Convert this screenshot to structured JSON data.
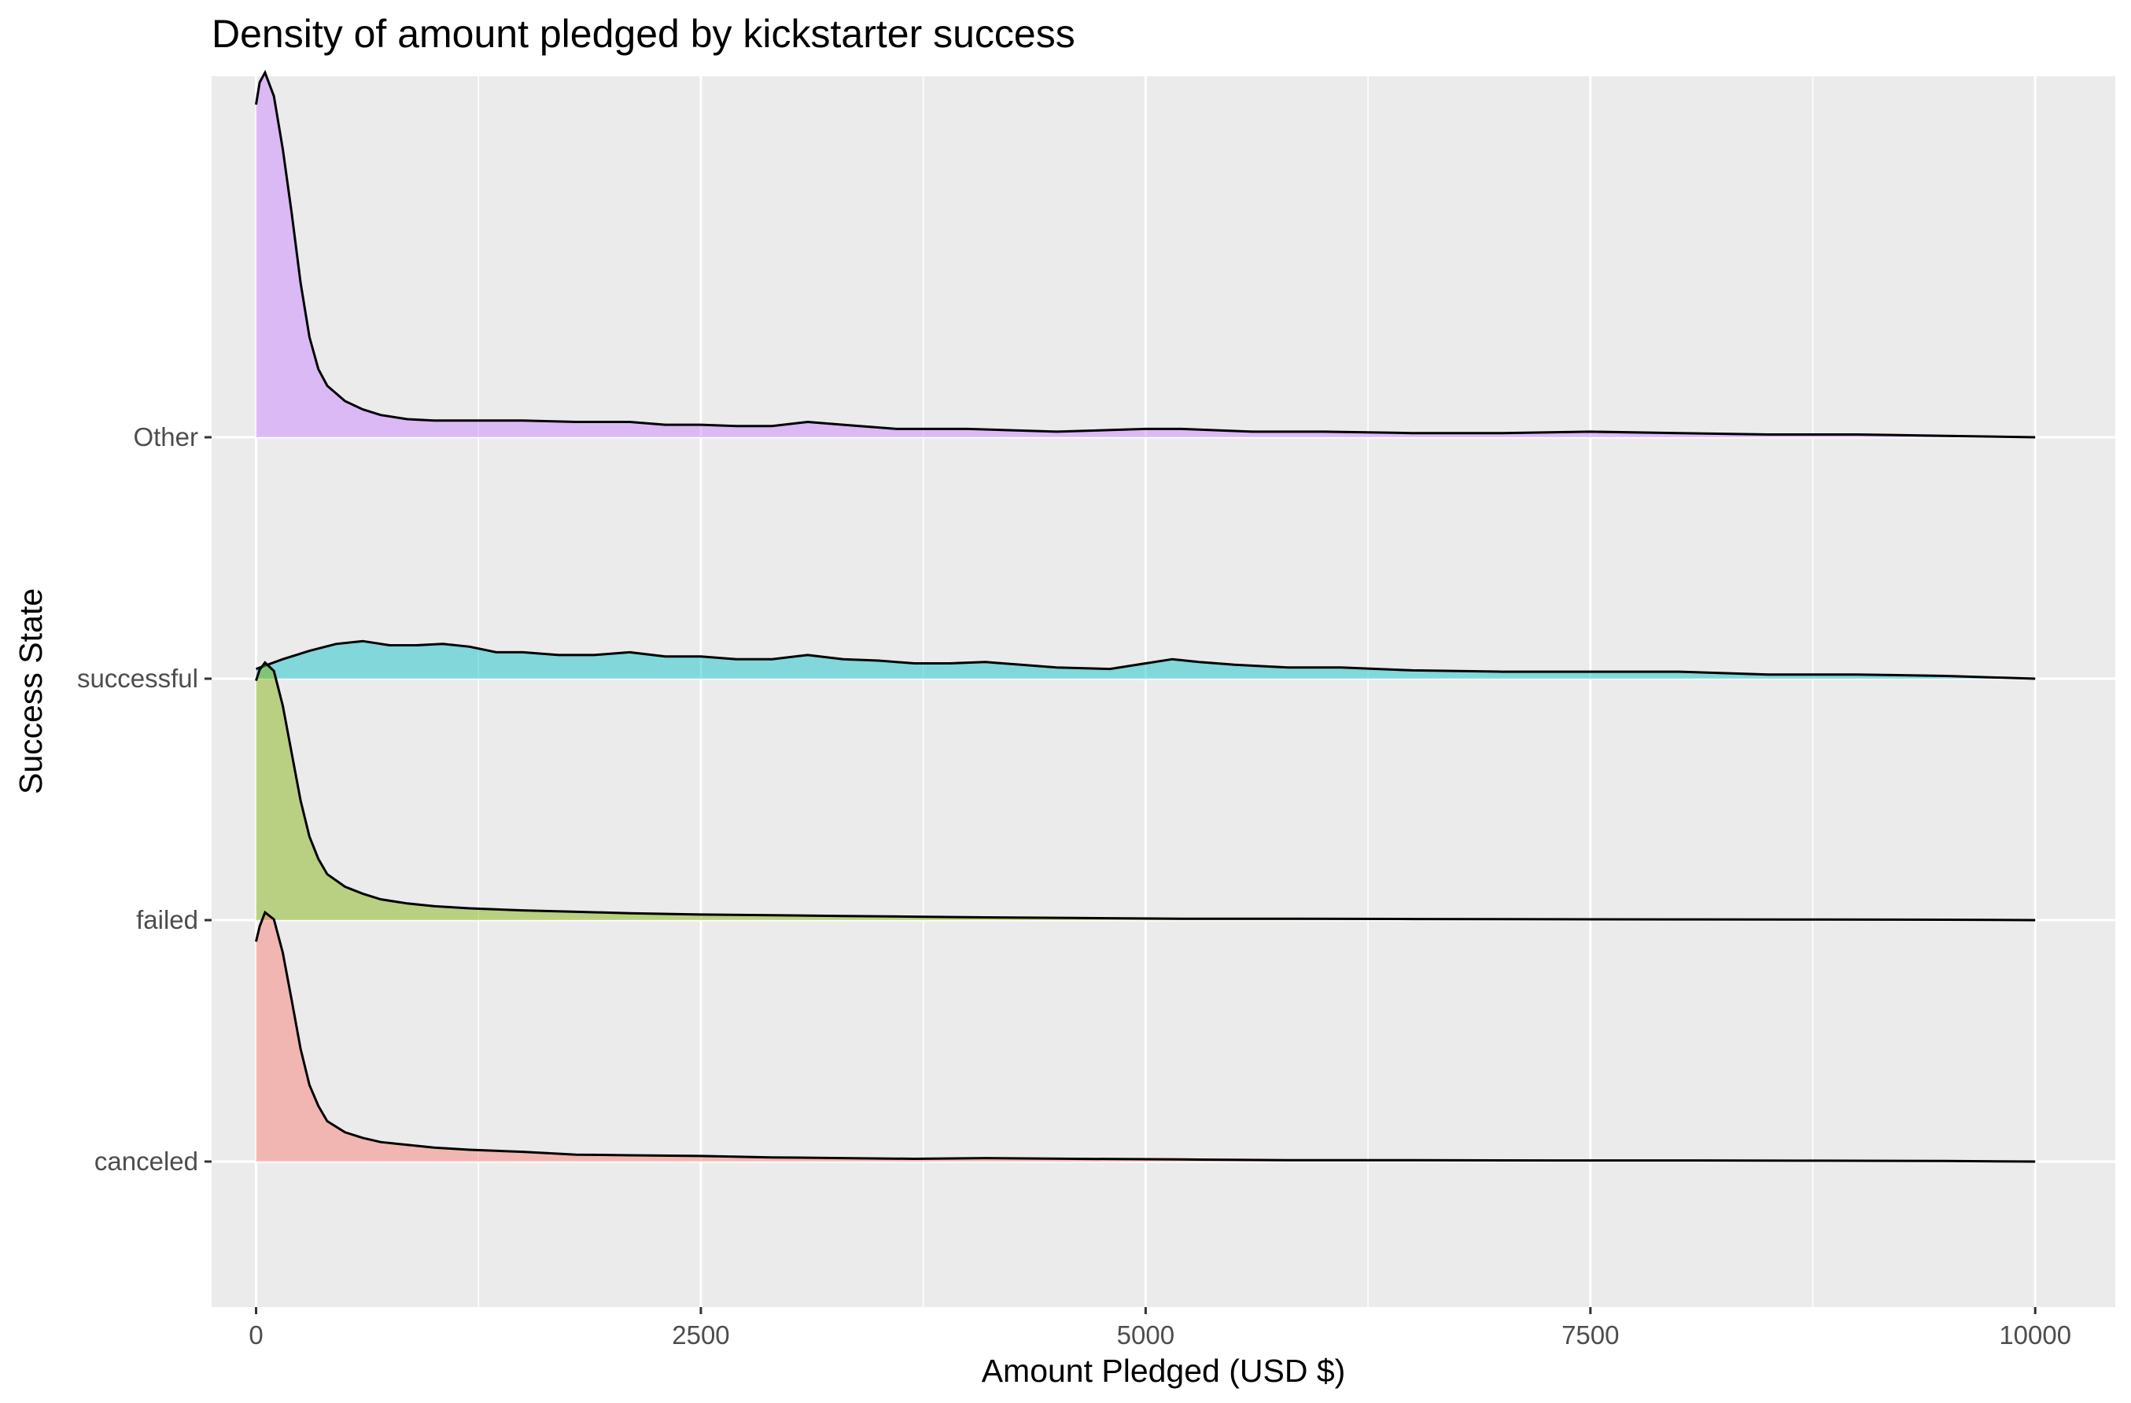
{
  "chart_data": {
    "type": "area",
    "subtype": "ridgeline-density",
    "title": "Density of amount pledged by kickstarter success",
    "xlabel": "Amount Pledged (USD $)",
    "ylabel": "Success State",
    "xlim": [
      -250,
      10450
    ],
    "x_ticks": [
      0,
      2500,
      5000,
      7500,
      10000
    ],
    "x_tick_labels": [
      "0",
      "2500",
      "5000",
      "7500",
      "10000"
    ],
    "categories": [
      "canceled",
      "failed",
      "successful",
      "Other"
    ],
    "grid": true,
    "legend": "none",
    "colors": {
      "canceled": "#F8766D",
      "failed": "#7CAE00",
      "successful": "#00BFC4",
      "Other": "#C77CFF",
      "panel": "#EBEBEB",
      "grid": "#FFFFFF",
      "outline": "#000000"
    },
    "series": [
      {
        "name": "canceled",
        "x": [
          0,
          20,
          50,
          100,
          150,
          200,
          250,
          300,
          350,
          400,
          500,
          600,
          700,
          850,
          1000,
          1200,
          1500,
          1800,
          2100,
          2500,
          2900,
          3300,
          3700,
          4100,
          4600,
          5200,
          5800,
          6500,
          7300,
          8000,
          8800,
          9500,
          10000
        ],
        "y": [
          1.58,
          1.69,
          1.79,
          1.74,
          1.5,
          1.16,
          0.81,
          0.55,
          0.4,
          0.29,
          0.21,
          0.17,
          0.14,
          0.12,
          0.1,
          0.085,
          0.07,
          0.05,
          0.045,
          0.04,
          0.03,
          0.025,
          0.02,
          0.025,
          0.02,
          0.015,
          0.01,
          0.01,
          0.008,
          0.008,
          0.006,
          0.004,
          0.0
        ]
      },
      {
        "name": "failed",
        "x": [
          0,
          20,
          50,
          100,
          150,
          200,
          250,
          300,
          350,
          400,
          500,
          600,
          700,
          850,
          1000,
          1200,
          1500,
          1800,
          2100,
          2500,
          2900,
          3300,
          3700,
          4100,
          4600,
          5200,
          5800,
          6500,
          7300,
          8000,
          8800,
          9500,
          10000
        ],
        "y": [
          1.72,
          1.8,
          1.85,
          1.79,
          1.54,
          1.2,
          0.86,
          0.6,
          0.44,
          0.33,
          0.24,
          0.19,
          0.15,
          0.12,
          0.1,
          0.085,
          0.07,
          0.06,
          0.05,
          0.04,
          0.035,
          0.03,
          0.025,
          0.02,
          0.015,
          0.01,
          0.01,
          0.008,
          0.006,
          0.005,
          0.004,
          0.003,
          0.0
        ]
      },
      {
        "name": "successful",
        "x": [
          0,
          150,
          300,
          450,
          600,
          750,
          900,
          1050,
          1200,
          1350,
          1500,
          1700,
          1900,
          2100,
          2300,
          2500,
          2700,
          2900,
          3100,
          3300,
          3500,
          3700,
          3900,
          4100,
          4300,
          4500,
          4800,
          5000,
          5150,
          5300,
          5500,
          5800,
          6100,
          6500,
          7000,
          7500,
          8000,
          8500,
          9000,
          9500,
          10000
        ],
        "y": [
          0.07,
          0.14,
          0.2,
          0.25,
          0.27,
          0.24,
          0.24,
          0.25,
          0.23,
          0.19,
          0.19,
          0.17,
          0.17,
          0.19,
          0.16,
          0.16,
          0.14,
          0.14,
          0.17,
          0.14,
          0.13,
          0.11,
          0.11,
          0.12,
          0.1,
          0.08,
          0.07,
          0.11,
          0.14,
          0.12,
          0.1,
          0.08,
          0.08,
          0.06,
          0.05,
          0.05,
          0.05,
          0.03,
          0.03,
          0.02,
          0.0
        ]
      },
      {
        "name": "Other",
        "x": [
          0,
          20,
          50,
          100,
          150,
          200,
          250,
          300,
          350,
          400,
          500,
          600,
          700,
          850,
          1000,
          1200,
          1500,
          1800,
          2100,
          2300,
          2500,
          2700,
          2900,
          3100,
          3300,
          3600,
          4000,
          4500,
          5000,
          5200,
          5600,
          6000,
          6500,
          7000,
          7500,
          8000,
          8500,
          9000,
          9500,
          10000
        ],
        "y": [
          2.39,
          2.55,
          2.62,
          2.45,
          2.07,
          1.61,
          1.11,
          0.72,
          0.49,
          0.37,
          0.26,
          0.2,
          0.16,
          0.13,
          0.12,
          0.12,
          0.12,
          0.11,
          0.11,
          0.09,
          0.09,
          0.08,
          0.08,
          0.11,
          0.09,
          0.06,
          0.06,
          0.04,
          0.06,
          0.06,
          0.04,
          0.04,
          0.03,
          0.03,
          0.04,
          0.03,
          0.02,
          0.02,
          0.01,
          0.0
        ]
      }
    ]
  }
}
